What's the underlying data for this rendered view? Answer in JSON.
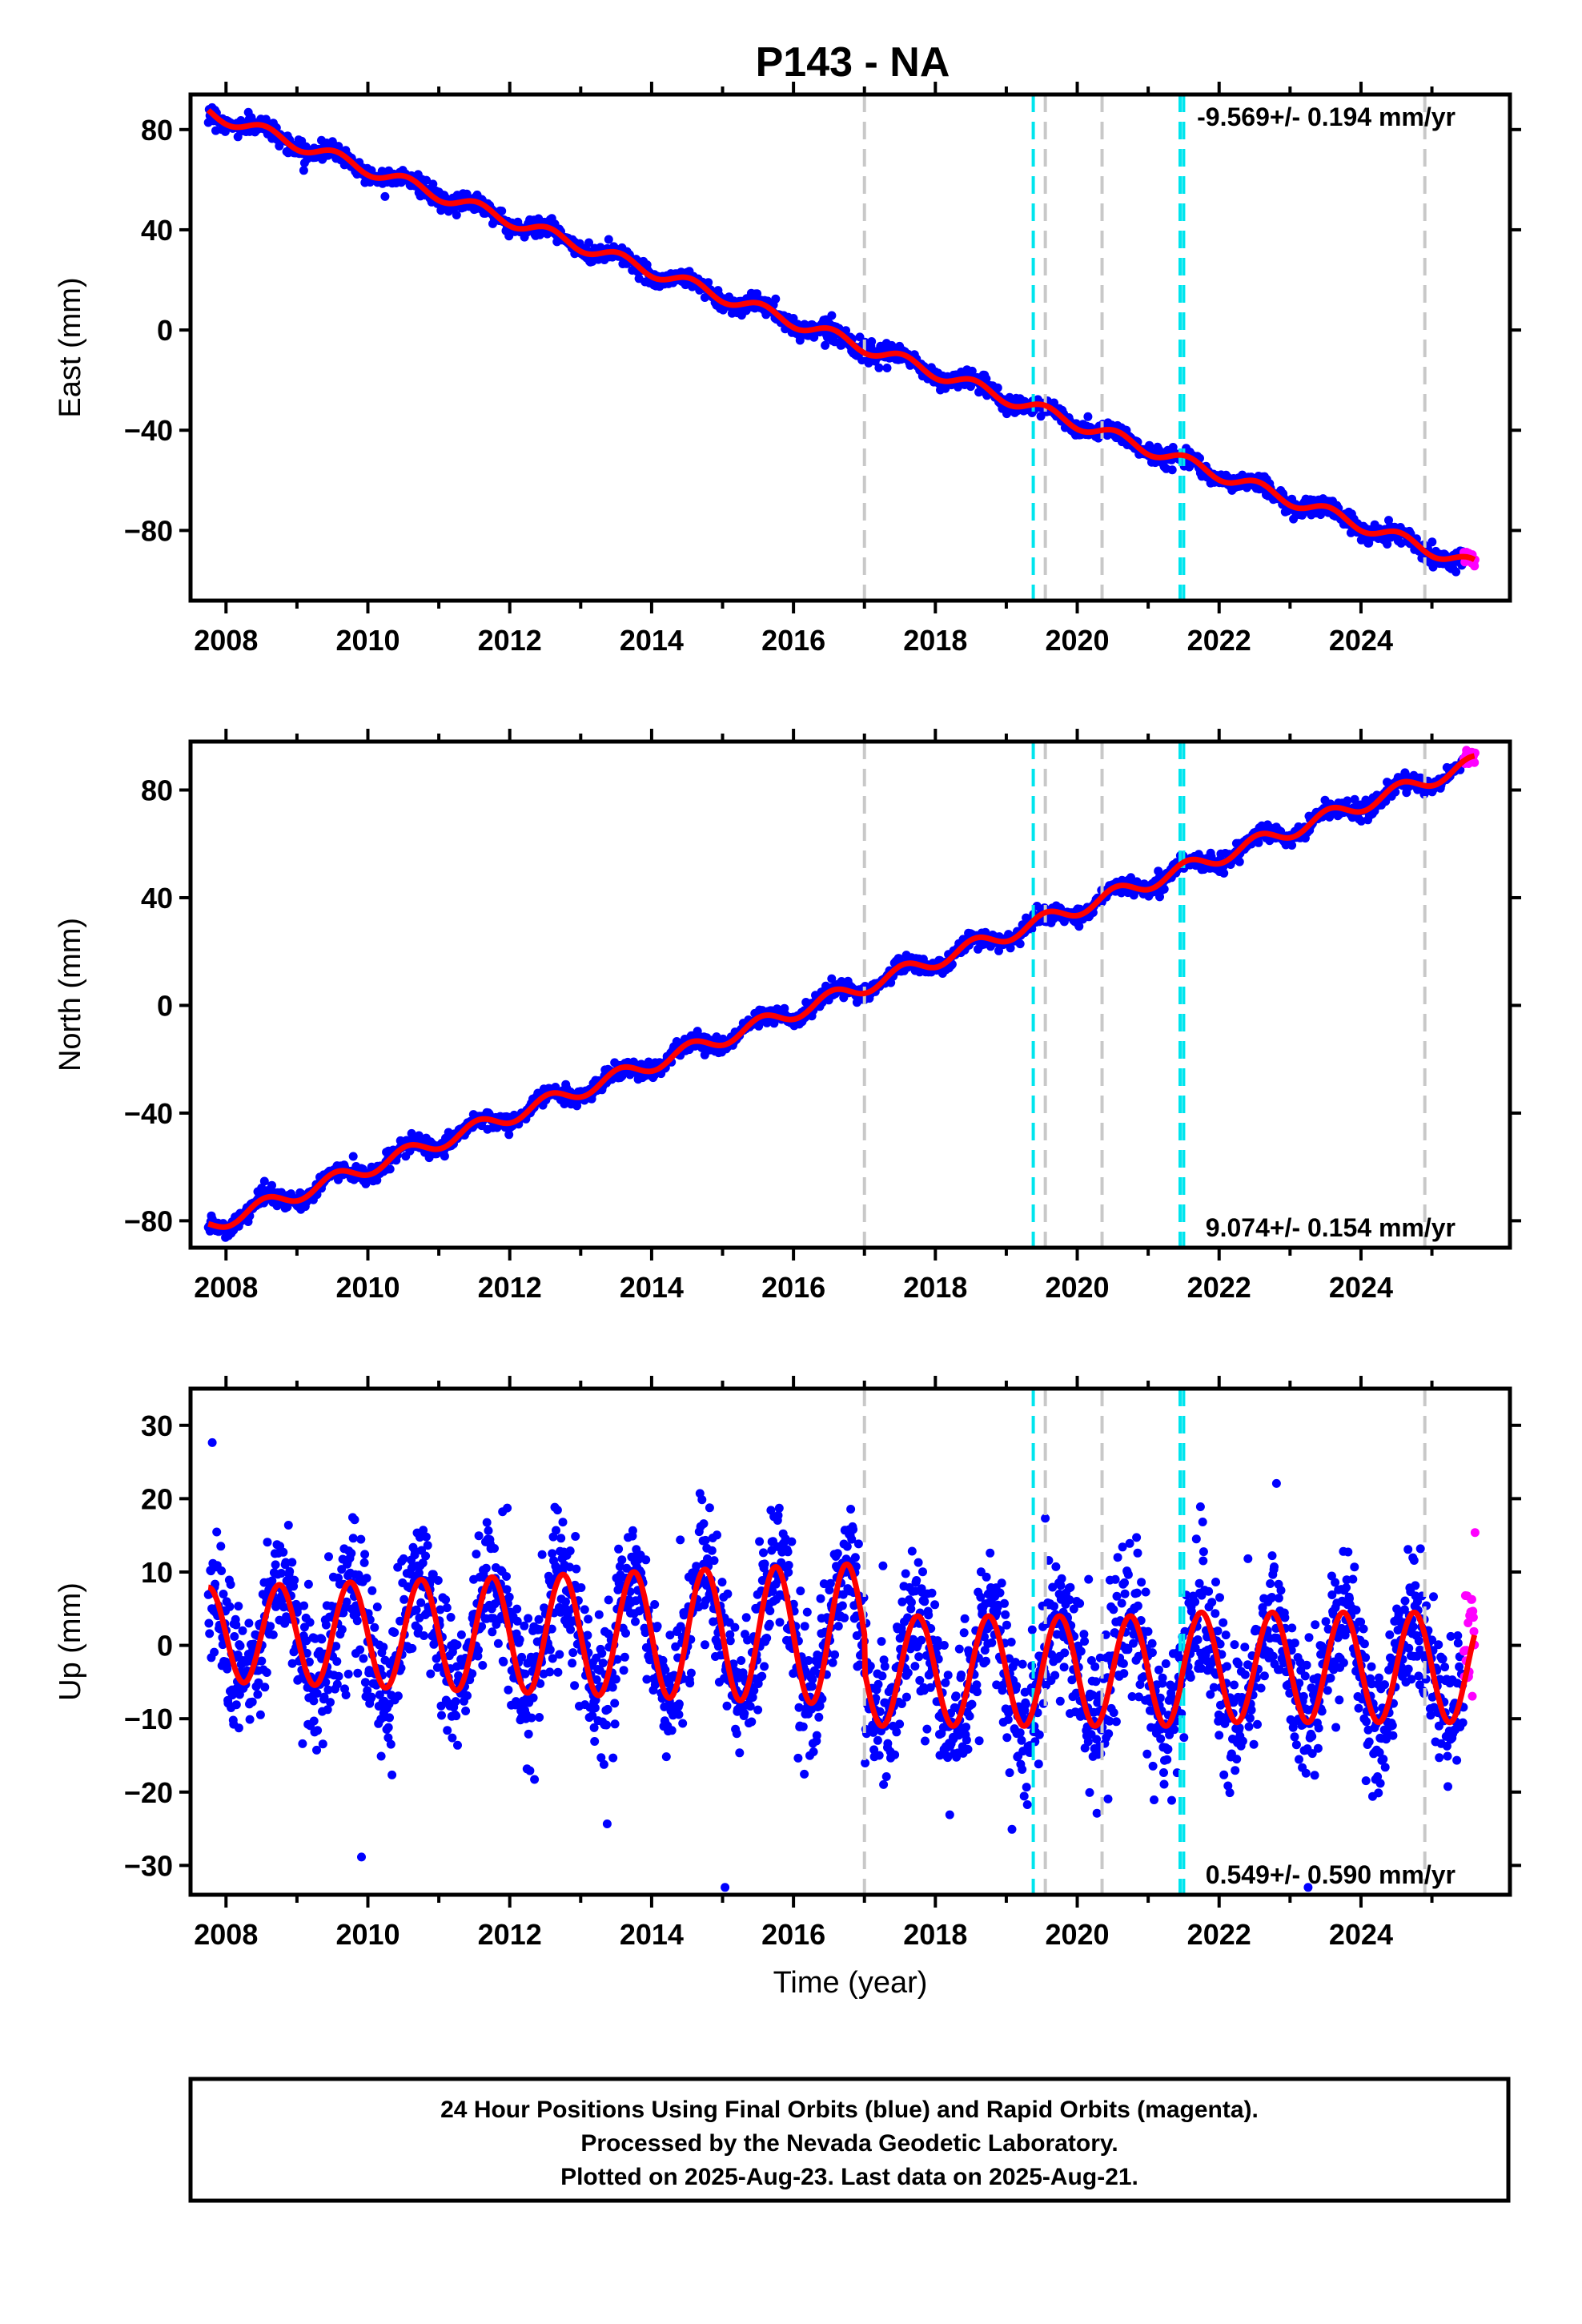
{
  "chart_data": {
    "type": "scatter",
    "title": "P143 - NA",
    "xlabel": "Time (year)",
    "xlim": [
      2007.5,
      2026.1
    ],
    "xticks": [
      "2008",
      "2010",
      "2012",
      "2014",
      "2016",
      "2018",
      "2020",
      "2022",
      "2024"
    ],
    "colors": {
      "final_orbits": "#0000ff",
      "rapid_orbits": "#ff00ff",
      "model_fit": "#ff0000",
      "gray_events": "#c8c8c8",
      "cyan_events": "#00e5ee"
    },
    "vertical_lines": {
      "gray": [
        2017.0,
        2019.55,
        2020.35,
        2024.9
      ],
      "cyan": [
        2019.38,
        2021.45,
        2021.5
      ]
    },
    "panels": [
      {
        "name": "east",
        "ylabel": "East (mm)",
        "ylim": [
          -108,
          94
        ],
        "yticks": [
          "80",
          "40",
          "0",
          "−40",
          "−80"
        ],
        "yticks_values": [
          80,
          40,
          0,
          -40,
          -80
        ],
        "rate_label": "-9.569+/- 0.194 mm/yr",
        "rate_position": "top-right",
        "velocity_mm_yr": -9.569,
        "data_start": [
          2007.75,
          87
        ],
        "data_end": [
          2025.6,
          -94
        ],
        "seasonal_amplitude_mm": 2.5,
        "scatter_mm": 1.8
      },
      {
        "name": "north",
        "ylabel": "North (mm)",
        "ylim": [
          -90,
          98
        ],
        "yticks": [
          "80",
          "40",
          "0",
          "−40",
          "−80"
        ],
        "yticks_values": [
          80,
          40,
          0,
          -40,
          -80
        ],
        "rate_label": "9.074+/- 0.154 mm/yr",
        "rate_position": "bottom-right",
        "velocity_mm_yr": 9.074,
        "data_start": [
          2007.75,
          -82
        ],
        "data_end": [
          2025.6,
          90
        ],
        "seasonal_amplitude_mm": 2.8,
        "scatter_mm": 1.6
      },
      {
        "name": "up",
        "ylabel": "Up (mm)",
        "ylim": [
          -34,
          35
        ],
        "yticks": [
          "30",
          "20",
          "10",
          "0",
          "−10",
          "−20",
          "−30"
        ],
        "yticks_values": [
          30,
          20,
          10,
          0,
          -10,
          -20,
          -30
        ],
        "rate_label": "0.549+/- 0.590 mm/yr",
        "rate_position": "bottom-right",
        "velocity_mm_yr": 0.549,
        "seasonal_amplitude_mm": 8,
        "scatter_mm": 4.5
      }
    ],
    "rapid_points_start": 2025.45
  },
  "footer": {
    "line1": "24 Hour Positions Using Final Orbits (blue) and Rapid Orbits (magenta).",
    "line2": "Processed by the Nevada Geodetic Laboratory.",
    "line3": "Plotted on 2025-Aug-23. Last data on 2025-Aug-21."
  }
}
